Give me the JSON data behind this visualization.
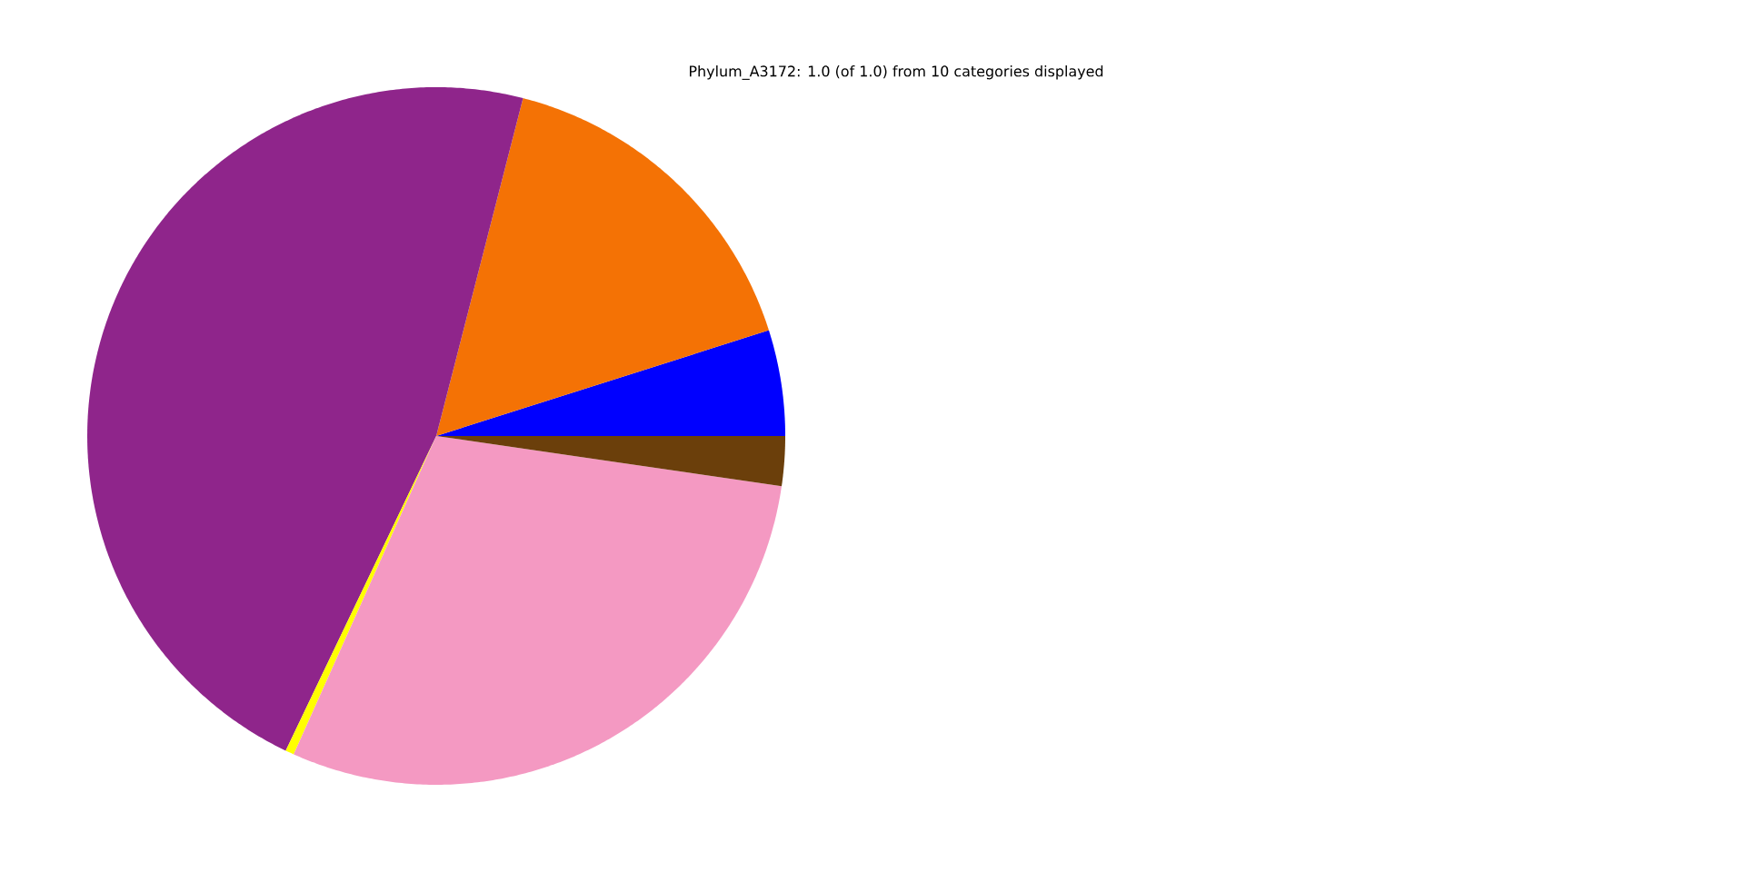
{
  "chart_data": {
    "type": "pie",
    "title": "Phylum_A3172: 1.0 (of 1.0) from 10 categories displayed",
    "categories": [
      null,
      null,
      null,
      null,
      null,
      null
    ],
    "values": [
      4.9,
      16.1,
      46.9,
      0.4,
      29.4,
      2.3
    ],
    "colors": [
      "#0000ff",
      "#f47205",
      "#8f258b",
      "#ffff00",
      "#f499c2",
      "#6b3f0b"
    ]
  }
}
